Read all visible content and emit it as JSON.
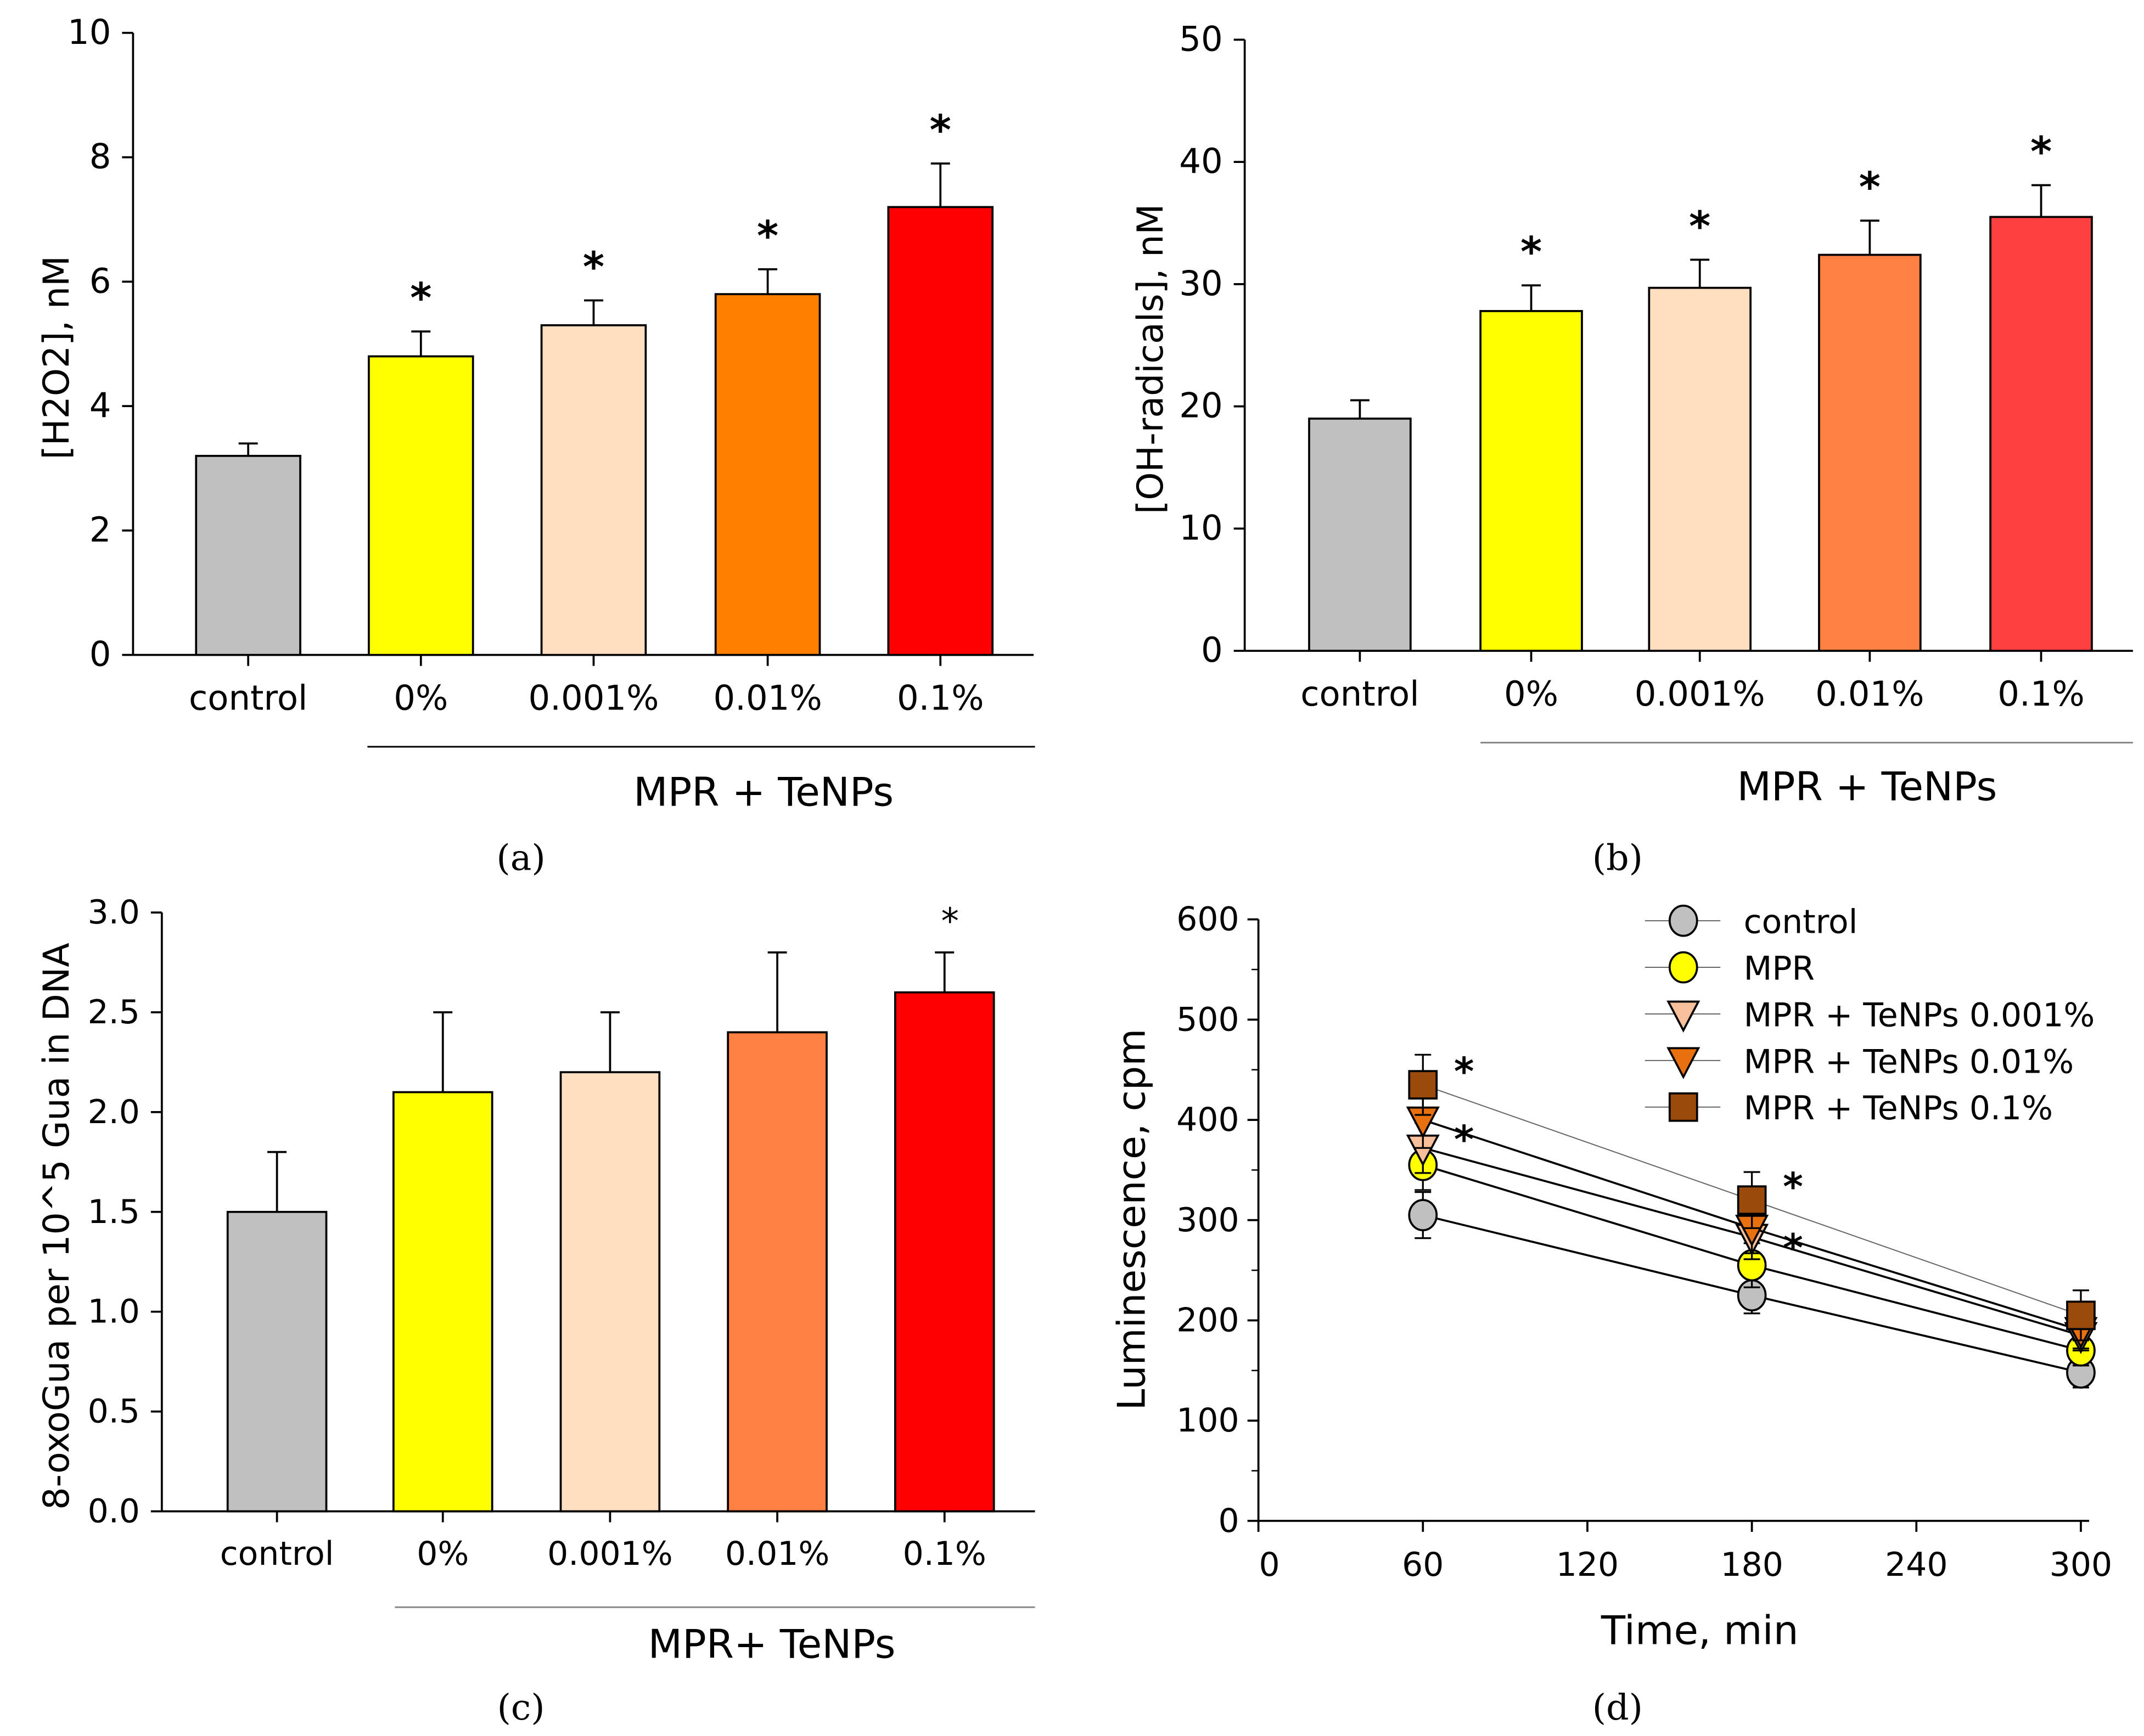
{
  "chart_data": [
    {
      "panel": "(a)",
      "type": "bar",
      "categories": [
        "control",
        "0%",
        "0.001%",
        "0.01%",
        "0.1%"
      ],
      "values": [
        3.2,
        4.8,
        5.3,
        5.8,
        7.2
      ],
      "errors": [
        0.2,
        0.4,
        0.4,
        0.4,
        0.7
      ],
      "significant": [
        false,
        true,
        true,
        true,
        true
      ],
      "colors": [
        "#c0c0c0",
        "#ffff00",
        "#ffdfbf",
        "#ff8000",
        "#ff0000"
      ],
      "ylabel": "[H2O2], nM",
      "ylim": [
        0,
        10
      ],
      "yticks": [
        "0",
        "2",
        "4",
        "6",
        "8",
        "10"
      ],
      "ytick_values": [
        0,
        2,
        4,
        6,
        8,
        10
      ],
      "group_label": "MPR + TeNPs",
      "star": "*"
    },
    {
      "panel": "(b)",
      "type": "bar",
      "categories": [
        "control",
        "0%",
        "0.001%",
        "0.01%",
        "0.1%"
      ],
      "values": [
        19,
        27.8,
        29.7,
        32.4,
        35.5
      ],
      "errors": [
        1.5,
        2.1,
        2.3,
        2.8,
        2.6
      ],
      "significant": [
        false,
        true,
        true,
        true,
        true
      ],
      "colors": [
        "#c0c0c0",
        "#ffff00",
        "#ffdfbf",
        "#ff8040",
        "#ff4040"
      ],
      "ylabel": "[OH-radicals], nM",
      "ylim": [
        0,
        50
      ],
      "yticks": [
        "0",
        "10",
        "20",
        "30",
        "40",
        "50"
      ],
      "ytick_values": [
        0,
        10,
        20,
        30,
        40,
        50
      ],
      "group_label": "MPR + TeNPs",
      "star": "*"
    },
    {
      "panel": "(c)",
      "type": "bar",
      "categories": [
        "control",
        "0%",
        "0.001%",
        "0.01%",
        "0.1%"
      ],
      "values": [
        1.5,
        2.1,
        2.2,
        2.4,
        2.6
      ],
      "errors": [
        0.3,
        0.4,
        0.3,
        0.4,
        0.2
      ],
      "significant": [
        false,
        false,
        false,
        false,
        true
      ],
      "colors": [
        "#c0c0c0",
        "#ffff00",
        "#ffdfbf",
        "#ff8040",
        "#ff0000"
      ],
      "ylabel": "8-oxoGua per 10^5 Gua in DNA",
      "ylim": [
        0,
        3
      ],
      "yticks": [
        "0.0",
        "0.5",
        "1.0",
        "1.5",
        "2.0",
        "2.5",
        "3.0"
      ],
      "ytick_values": [
        0,
        0.5,
        1,
        1.5,
        2,
        2.5,
        3
      ],
      "group_label": "MPR+ TeNPs",
      "star": "*"
    },
    {
      "panel": "(d)",
      "type": "line",
      "x": [
        60,
        180,
        300
      ],
      "xlabel": "Time, min",
      "ylabel": "Luminescence, cpm",
      "xlim": [
        0,
        300
      ],
      "ylim": [
        0,
        600
      ],
      "xticks": [
        "0",
        "60",
        "120",
        "180",
        "240",
        "300"
      ],
      "xtick_values": [
        0,
        60,
        120,
        180,
        240,
        300
      ],
      "yticks": [
        "0",
        "100",
        "200",
        "300",
        "400",
        "500",
        "600"
      ],
      "ytick_values": [
        0,
        100,
        200,
        300,
        400,
        500,
        600
      ],
      "legend_position": "top-right",
      "series": [
        {
          "name": "control",
          "values": [
            305,
            225,
            148
          ],
          "errors": [
            23,
            18,
            15
          ],
          "marker": "circle",
          "color": "#c0c0c0",
          "significant": [
            false,
            false,
            false
          ]
        },
        {
          "name": "MPR",
          "values": [
            355,
            255,
            170
          ],
          "errors": [
            25,
            22,
            15
          ],
          "marker": "circle",
          "color": "#ffff00",
          "significant": [
            false,
            false,
            false
          ]
        },
        {
          "name": "MPR + TeNPs 0.001%",
          "values": [
            372,
            283,
            185
          ],
          "errors": [
            25,
            22,
            15
          ],
          "marker": "triangle-down",
          "color": "#f8c09a",
          "significant": [
            false,
            false,
            false
          ]
        },
        {
          "name": "MPR + TeNPs 0.01%",
          "values": [
            400,
            292,
            190
          ],
          "errors": [
            28,
            25,
            18
          ],
          "marker": "triangle-down",
          "color": "#e8700f",
          "significant": [
            true,
            true,
            false
          ]
        },
        {
          "name": "MPR + TeNPs 0.1%",
          "values": [
            435,
            320,
            205
          ],
          "errors": [
            30,
            28,
            25
          ],
          "marker": "square",
          "color": "#9a4a0a",
          "significant": [
            true,
            true,
            false
          ]
        }
      ],
      "star": "*"
    }
  ]
}
